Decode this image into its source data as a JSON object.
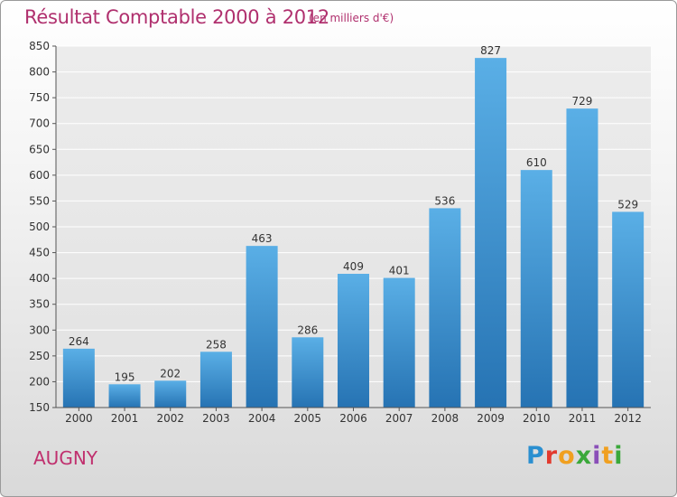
{
  "header": {
    "title": "Résultat Comptable 2000 à 2012",
    "subtitle": "(en milliers d'€)"
  },
  "footer": {
    "commune": "AUGNY",
    "logo_text": "Proxiti"
  },
  "colors": {
    "title": "#b0306e",
    "bar_top": "#5aafe6",
    "bar_bottom": "#2673b3",
    "grid": "#ffffff",
    "axis": "#555555"
  },
  "chart_data": {
    "type": "bar",
    "title": "Résultat Comptable 2000 à 2012",
    "xlabel": "",
    "ylabel": "",
    "categories": [
      "2000",
      "2001",
      "2002",
      "2003",
      "2004",
      "2005",
      "2006",
      "2007",
      "2008",
      "2009",
      "2010",
      "2011",
      "2012"
    ],
    "values": [
      264,
      195,
      202,
      258,
      463,
      286,
      409,
      401,
      536,
      827,
      610,
      729,
      529
    ],
    "ylim": [
      150,
      850
    ],
    "yticks": [
      150,
      200,
      250,
      300,
      350,
      400,
      450,
      500,
      550,
      600,
      650,
      700,
      750,
      800,
      850
    ],
    "grid": true,
    "legend": "none"
  }
}
